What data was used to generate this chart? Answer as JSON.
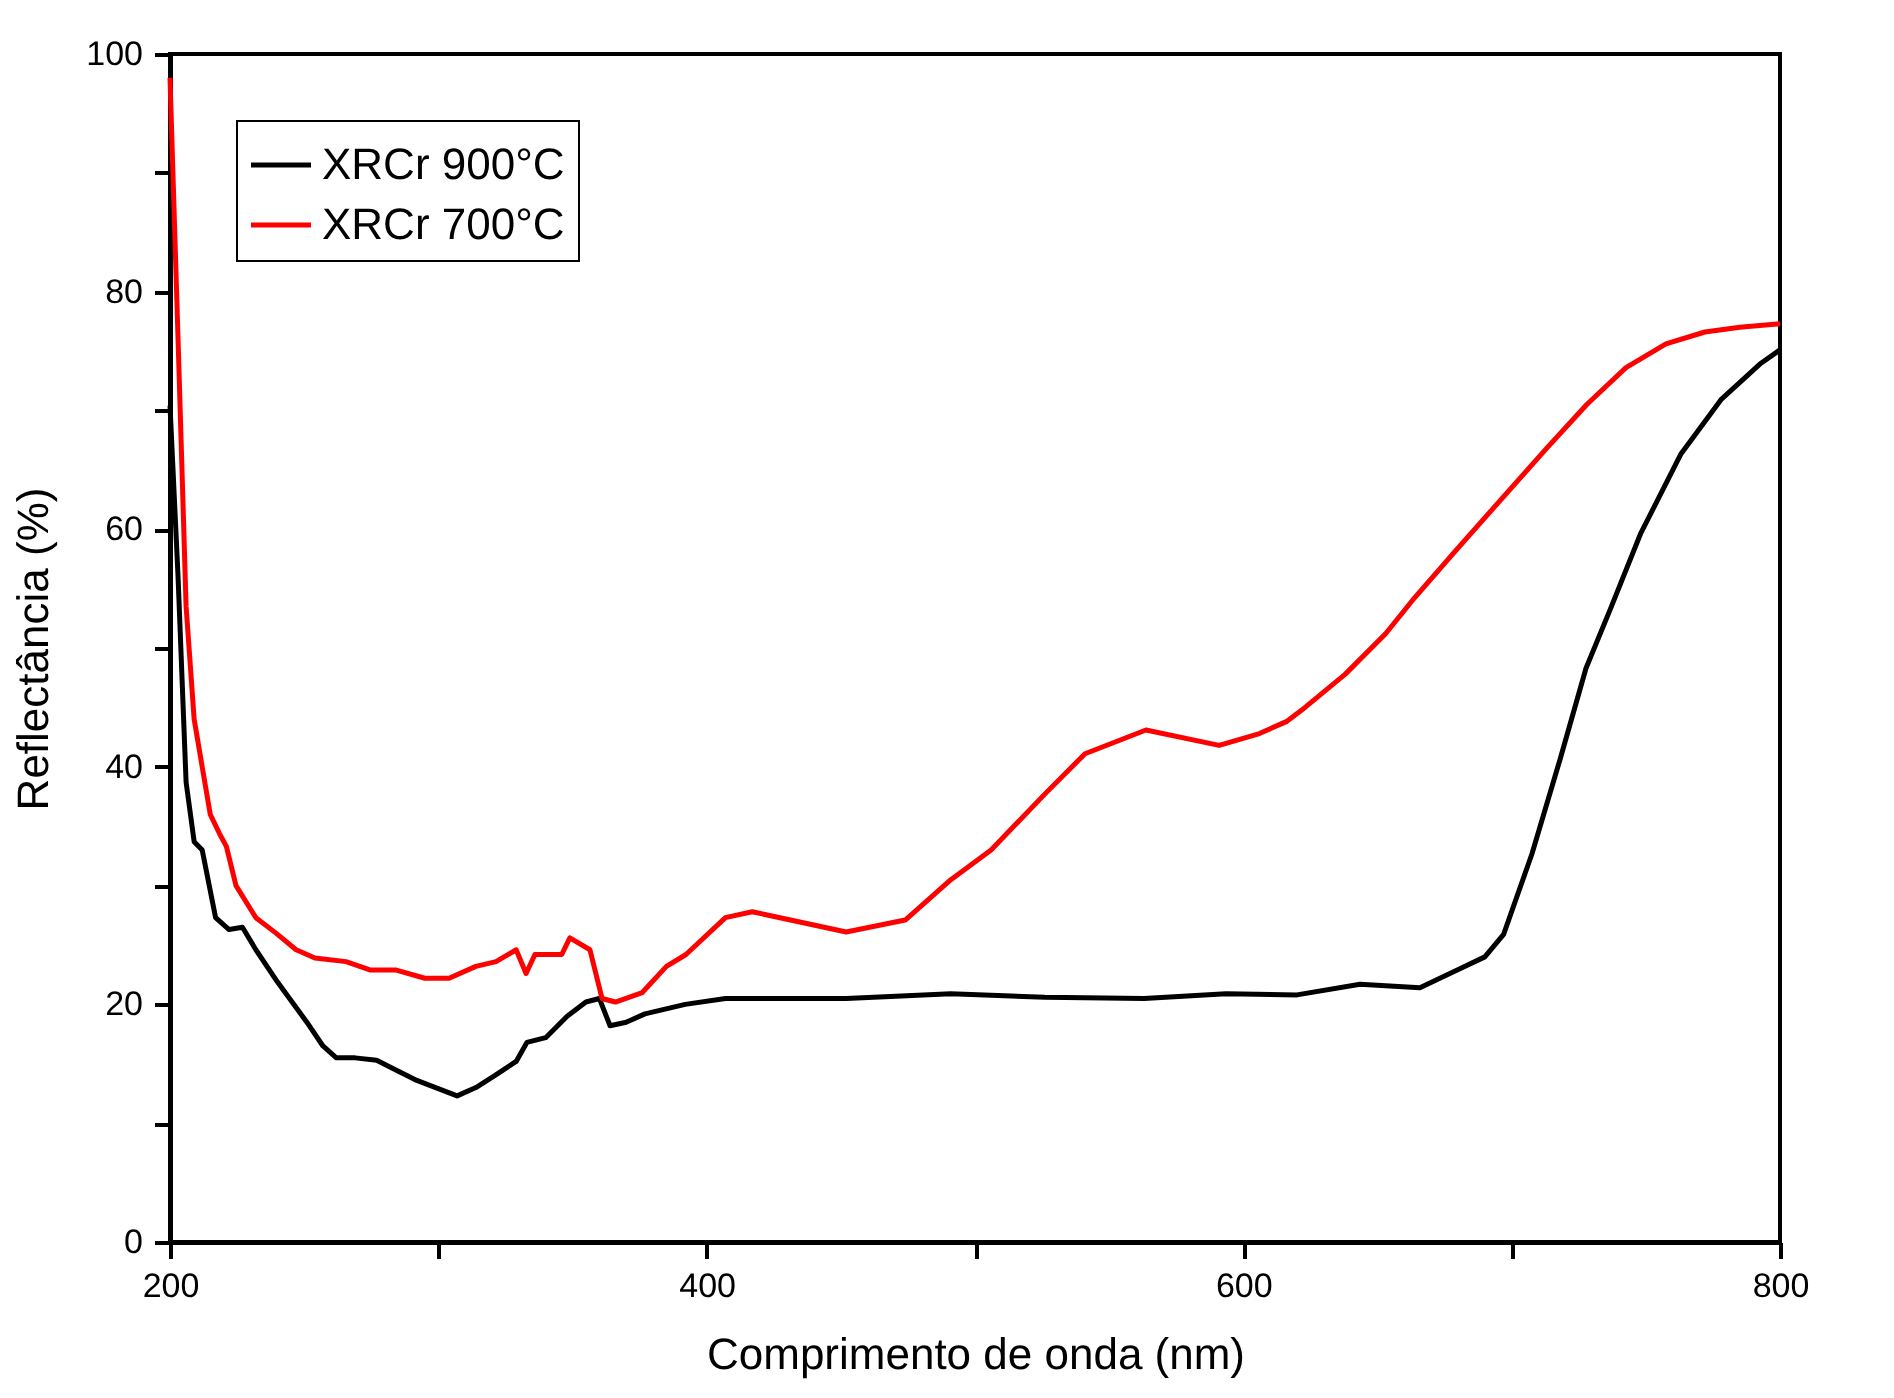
{
  "chart_data": {
    "type": "line",
    "xlabel": "Comprimento de onda (nm)",
    "ylabel": "Reflectância (%)",
    "xlim": [
      200,
      800
    ],
    "ylim": [
      0,
      100
    ],
    "xticks": [
      200,
      {
        "value": 300,
        "label": null
      },
      400,
      {
        "value": 500,
        "label": null
      },
      600,
      {
        "value": 700,
        "label": null
      },
      800
    ],
    "yticks": [
      0,
      {
        "value": 10,
        "label": null
      },
      20,
      {
        "value": 30,
        "label": null
      },
      40,
      {
        "value": 50,
        "label": null
      },
      60,
      {
        "value": 70,
        "label": null
      },
      80,
      {
        "value": 90,
        "label": null
      },
      100
    ],
    "grid": false,
    "legend": "top left",
    "marker": "none",
    "line_style": "solid",
    "series": [
      {
        "name": "XRCr 900°C",
        "color": "#000000",
        "x": [
          200,
          203,
          206,
          209,
          212,
          217,
          222,
          227,
          232,
          240,
          251,
          257,
          262,
          269,
          277,
          284,
          292,
          299,
          307,
          314,
          321,
          329,
          333,
          340,
          348,
          355,
          360,
          364,
          370,
          377,
          392,
          407,
          452,
          491,
          526,
          563,
          593.5,
          620,
          643.5,
          665.8,
          680.7,
          690,
          697,
          707.6,
          718,
          727.7,
          737,
          748,
          763,
          778,
          792.5,
          800
        ],
        "values": [
          70.4,
          56,
          38.7,
          33.7,
          33,
          27.3,
          26.3,
          26.5,
          24.6,
          21.9,
          18.5,
          16.5,
          15.5,
          15.5,
          15.3,
          14.5,
          13.6,
          13,
          12.3,
          13,
          14,
          15.2,
          16.8,
          17.2,
          19,
          20.2,
          20.5,
          18.2,
          18.5,
          19.2,
          20.0,
          20.5,
          20.5,
          20.9,
          20.6,
          20.5,
          20.9,
          20.8,
          21.7,
          21.4,
          23,
          24,
          25.9,
          32.7,
          40.6,
          48.3,
          53.4,
          59.6,
          66.3,
          70.9,
          73.9,
          75.1
        ]
      },
      {
        "name": "XRCr 700°C",
        "color": "#ff0000",
        "x": [
          200,
          203,
          206,
          209,
          212,
          215,
          218.6,
          221,
          224.6,
          232,
          239.5,
          247,
          254,
          265.6,
          274.5,
          284,
          295,
          304,
          314,
          321.5,
          329,
          332.7,
          336,
          346,
          349,
          356.5,
          361,
          366,
          376,
          385,
          392.3,
          407,
          417,
          452,
          474,
          491,
          506,
          526,
          541,
          563.7,
          591,
          606,
          616,
          623,
          638,
          653,
          663,
          678,
          698,
          713,
          728,
          742.6,
          757.5,
          772,
          785,
          800
        ],
        "values": [
          98,
          76,
          53.5,
          44,
          40,
          36,
          34.3,
          33.3,
          30,
          27.3,
          26,
          24.6,
          23.9,
          23.6,
          22.9,
          22.9,
          22.2,
          22.2,
          23.2,
          23.6,
          24.6,
          22.6,
          24.2,
          24.2,
          25.6,
          24.6,
          20.5,
          20.2,
          21,
          23.2,
          24.2,
          27.3,
          27.8,
          26.1,
          27.1,
          30.5,
          33,
          37.7,
          41.1,
          43.1,
          41.8,
          42.8,
          43.8,
          45,
          47.8,
          51.2,
          54,
          57.9,
          63,
          66.8,
          70.5,
          73.6,
          75.6,
          76.6,
          77,
          77.3
        ]
      }
    ]
  }
}
